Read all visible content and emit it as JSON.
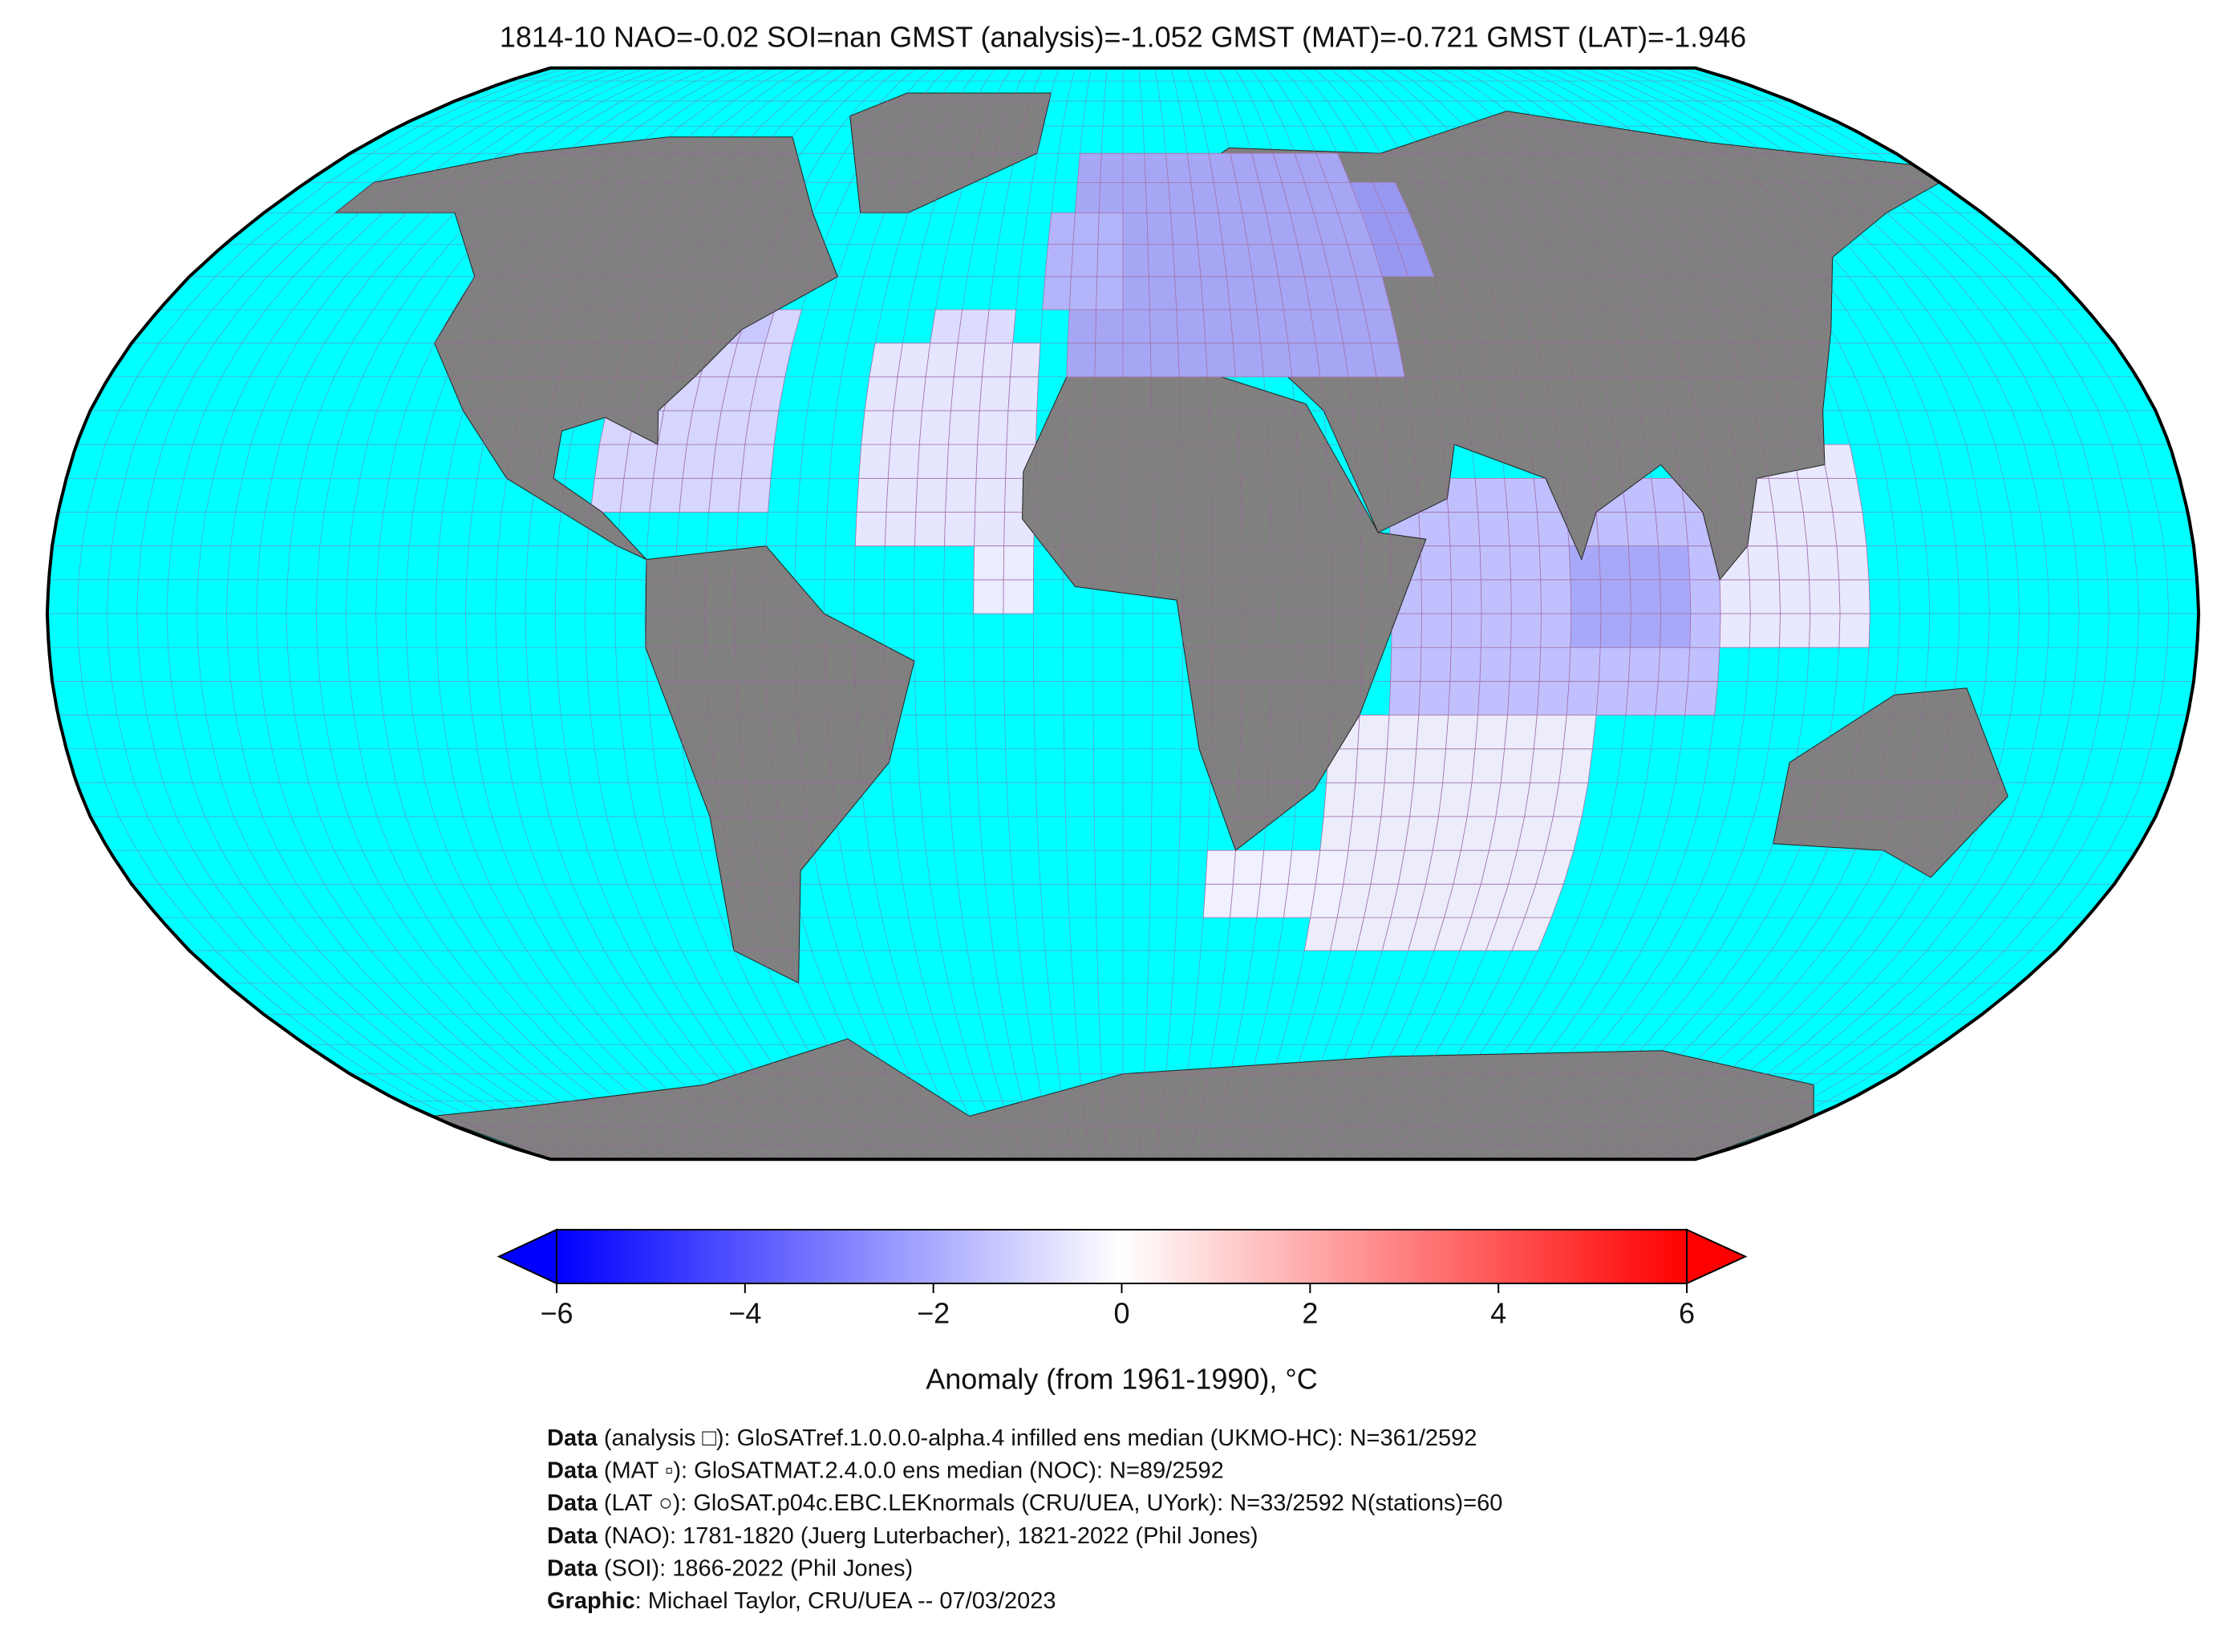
{
  "title": "1814-10 NAO=-0.02 SOI=nan GMST (analysis)=-1.052 GMST (MAT)=-0.721 GMST (LAT)=-1.946",
  "colorbar": {
    "label": "Anomaly (from 1961-1990), °C",
    "lim": [
      -6,
      6
    ],
    "ticks": [
      {
        "value": -6,
        "label": "−6"
      },
      {
        "value": -4,
        "label": "−4"
      },
      {
        "value": -2,
        "label": "−2"
      },
      0,
      2,
      4,
      6
    ]
  },
  "credits": [
    {
      "bold": "Data",
      "text": "(analysis □): GloSATref.1.0.0.0-alpha.4 infilled ens median (UKMO-HC): N=361/2592"
    },
    {
      "bold": "Data",
      "text": "(MAT ▫): GloSATMAT.2.4.0.0 ens median (NOC): N=89/2592"
    },
    {
      "bold": "Data",
      "text": "(LAT ○): GloSAT.p04c.EBC.LEKnormals (CRU/UEA, UYork): N=33/2592 N(stations)=60"
    },
    {
      "bold": "Data",
      "text": "(NAO): 1781-1820 (Juerg Luterbacher), 1821-2022 (Phil Jones)"
    },
    {
      "bold": "Data",
      "text": "(SOI): 1866-2022 (Phil Jones)"
    },
    {
      "bold": "Graphic",
      "text": ": Michael Taylor, CRU/UEA -- 07/03/2023"
    }
  ]
}
